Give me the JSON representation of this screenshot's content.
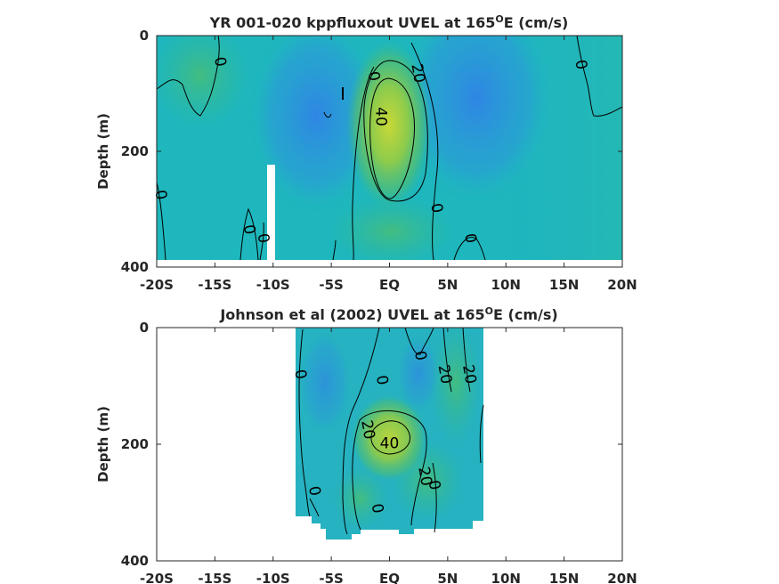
{
  "colors": {
    "axis": "#262626",
    "background": "#ffffff",
    "contour": "#000000",
    "colormap_low": "#2f7fe0",
    "colormap_mid": "#1fb5b0",
    "colormap_high": "#c8d838"
  },
  "chart_data": [
    {
      "type": "heatmap",
      "title_main": "YR 001-020 kppfluxout UVEL at 165",
      "title_sup": "O",
      "title_end": "E (cm/s)",
      "xlabel": "",
      "ylabel": "Depth (m)",
      "xlim": [
        -20,
        20
      ],
      "ylim": [
        0,
        400
      ],
      "y_reversed": true,
      "x_ticks": [
        -20,
        -15,
        -10,
        -5,
        0,
        5,
        10,
        15,
        20
      ],
      "x_tick_labels": [
        "-20S",
        "-15S",
        "-10S",
        "-5S",
        "EQ",
        "5N",
        "10N",
        "15N",
        "20N"
      ],
      "y_ticks": [
        0,
        200,
        400
      ],
      "y_tick_labels": [
        "0",
        "200",
        "400"
      ],
      "data_extent": {
        "lat": [
          -20,
          20
        ],
        "depth": [
          0,
          387
        ]
      },
      "missing_column": {
        "lat": [
          -10.2,
          -9.6
        ],
        "depth": [
          225,
          400
        ]
      },
      "core": {
        "lat": 0.4,
        "depth": 140,
        "max_speed": 45
      },
      "contour_labels": [
        {
          "text": "0",
          "lat": -14.5,
          "depth": 45
        },
        {
          "text": "0",
          "lat": -1.3,
          "depth": 70
        },
        {
          "text": "20",
          "lat": 2.5,
          "depth": 65
        },
        {
          "text": "40",
          "lat": -0.7,
          "depth": 140
        },
        {
          "text": "0",
          "lat": 16.5,
          "depth": 50
        },
        {
          "text": "0",
          "lat": -19.6,
          "depth": 275
        },
        {
          "text": "0",
          "lat": -12.0,
          "depth": 335
        },
        {
          "text": "0",
          "lat": -10.8,
          "depth": 350
        },
        {
          "text": "0",
          "lat": 4.1,
          "depth": 298
        },
        {
          "text": "0",
          "lat": 7.0,
          "depth": 350
        }
      ]
    },
    {
      "type": "heatmap",
      "title_main": "Johnson et al (2002) UVEL at 165",
      "title_sup": "O",
      "title_end": "E (cm/s)",
      "xlabel": "",
      "ylabel": "Depth (m)",
      "xlim": [
        -20,
        20
      ],
      "ylim": [
        0,
        400
      ],
      "y_reversed": true,
      "x_ticks": [
        -20,
        -15,
        -10,
        -5,
        0,
        5,
        10,
        15,
        20
      ],
      "x_tick_labels": [
        "-20S",
        "-15S",
        "-10S",
        "-5S",
        "EQ",
        "5N",
        "10N",
        "15N",
        "20N"
      ],
      "y_ticks": [
        0,
        200,
        400
      ],
      "y_tick_labels": [
        "0",
        "200",
        "400"
      ],
      "data_extent": {
        "lat": [
          -8,
          8
        ],
        "depth": [
          0,
          360
        ]
      },
      "core": {
        "lat": 0.3,
        "depth": 195,
        "max_speed": 42
      },
      "contour_labels": [
        {
          "text": "0",
          "lat": -7.6,
          "depth": 80
        },
        {
          "text": "0",
          "lat": -0.6,
          "depth": 90
        },
        {
          "text": "0",
          "lat": 2.7,
          "depth": 48
        },
        {
          "text": "20",
          "lat": 4.8,
          "depth": 80
        },
        {
          "text": "20",
          "lat": 6.9,
          "depth": 80
        },
        {
          "text": "20",
          "lat": -1.8,
          "depth": 175
        },
        {
          "text": "40",
          "lat": 0.0,
          "depth": 198
        },
        {
          "text": "20",
          "lat": 3.1,
          "depth": 255
        },
        {
          "text": "0",
          "lat": 3.9,
          "depth": 270
        },
        {
          "text": "0",
          "lat": -6.4,
          "depth": 280
        },
        {
          "text": "0",
          "lat": -1.0,
          "depth": 310
        }
      ]
    }
  ]
}
